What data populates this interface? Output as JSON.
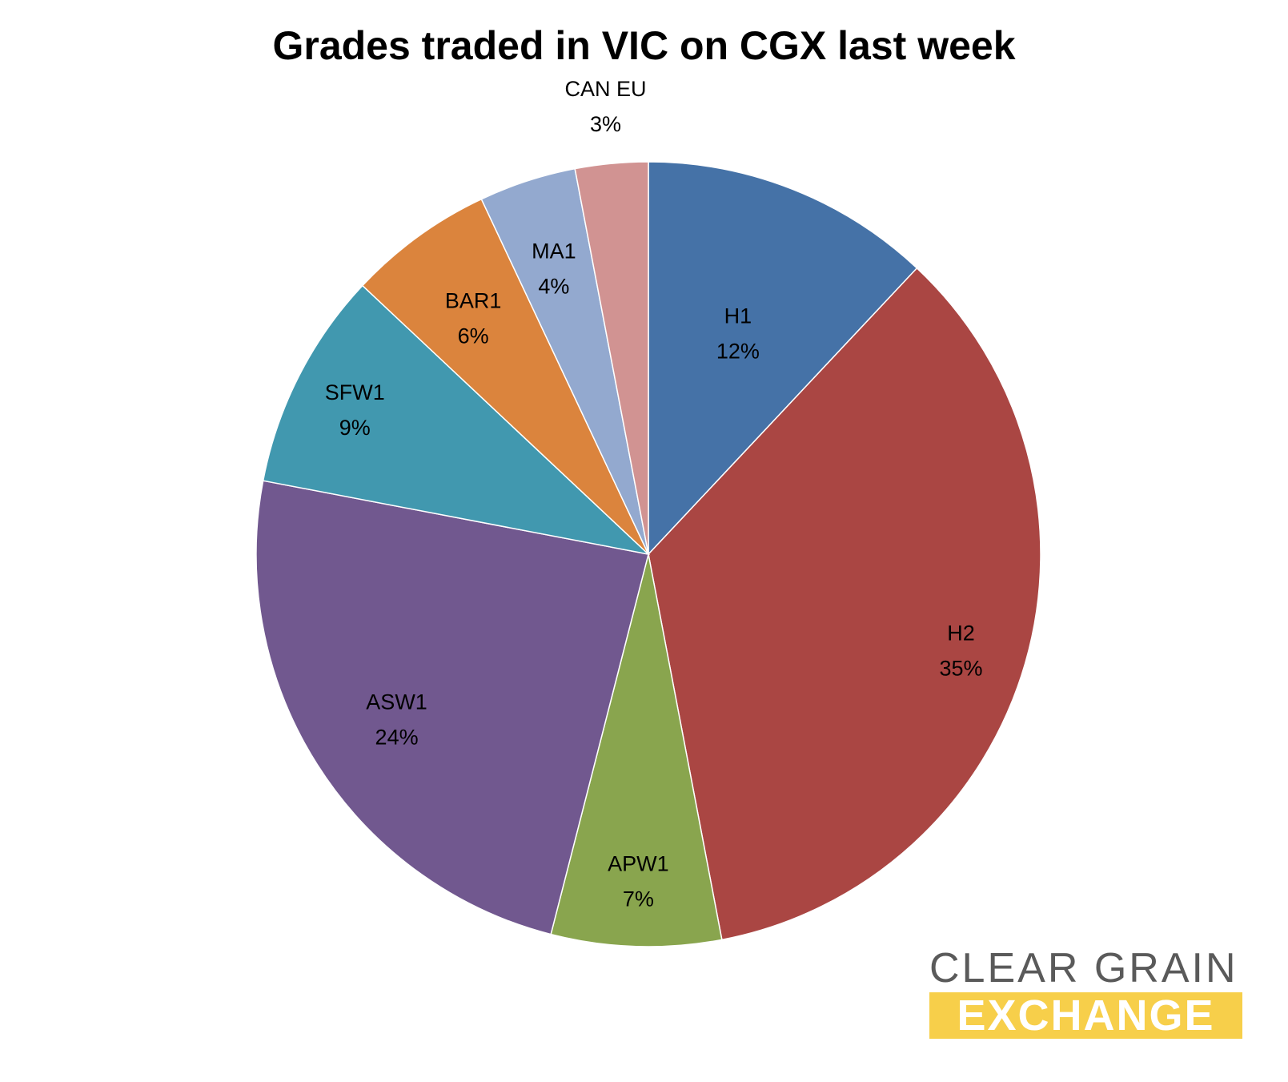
{
  "chart_data": {
    "type": "pie",
    "title": "Grades traded in VIC on CGX last week",
    "start_angle_deg": 0,
    "direction": "clockwise",
    "slices": [
      {
        "label": "H1",
        "value": 12,
        "display": "12%",
        "color": "#4572a7"
      },
      {
        "label": "H2",
        "value": 35,
        "display": "35%",
        "color": "#aa4643"
      },
      {
        "label": "APW1",
        "value": 7,
        "display": "7%",
        "color": "#89a54e"
      },
      {
        "label": "ASW1",
        "value": 24,
        "display": "24%",
        "color": "#71588f"
      },
      {
        "label": "SFW1",
        "value": 9,
        "display": "9%",
        "color": "#4198af"
      },
      {
        "label": "BAR1",
        "value": 6,
        "display": "6%",
        "color": "#db843d"
      },
      {
        "label": "MA1",
        "value": 4,
        "display": "4%",
        "color": "#93a9cf"
      },
      {
        "label": "CAN EU",
        "value": 3,
        "display": "3%",
        "color": "#d19392"
      }
    ]
  },
  "logo": {
    "line1": "CLEAR GRAIN",
    "line2": "EXCHANGE",
    "color_text": "#5a5a5a",
    "color_band": "#f7cf4a"
  }
}
